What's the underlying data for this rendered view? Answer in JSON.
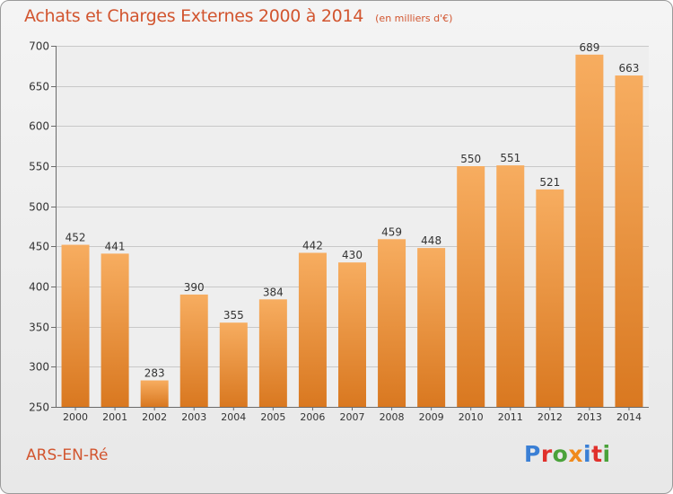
{
  "header": {
    "title": "Achats et Charges Externes 2000 à 2014",
    "subtitle": "(en milliers d'€)"
  },
  "footer": {
    "commune": "ARS-EN-Ré",
    "logo_text": "Proxiti",
    "logo_colors": [
      "#3a7fd5",
      "#e0302b",
      "#4aa23a",
      "#f08a1c",
      "#3a7fd5",
      "#e0302b",
      "#4aa23a"
    ]
  },
  "colors": {
    "bar_light": "#f7ad60",
    "bar_dark": "#d97820",
    "grid": "#c8c8c8",
    "axis": "#6a6a6a",
    "accent": "#d2552f"
  },
  "chart_data": {
    "type": "bar",
    "title": "Achats et Charges Externes 2000 à 2014",
    "subtitle": "(en milliers d'€)",
    "categories": [
      "2000",
      "2001",
      "2002",
      "2003",
      "2004",
      "2005",
      "2006",
      "2007",
      "2008",
      "2009",
      "2010",
      "2011",
      "2012",
      "2013",
      "2014"
    ],
    "values": [
      452,
      441,
      283,
      390,
      355,
      384,
      442,
      430,
      459,
      448,
      550,
      551,
      521,
      689,
      663
    ],
    "ylim": [
      250,
      700
    ],
    "yticks": [
      250,
      300,
      350,
      400,
      450,
      500,
      550,
      600,
      650,
      700
    ],
    "grid": true,
    "data_labels": true
  }
}
